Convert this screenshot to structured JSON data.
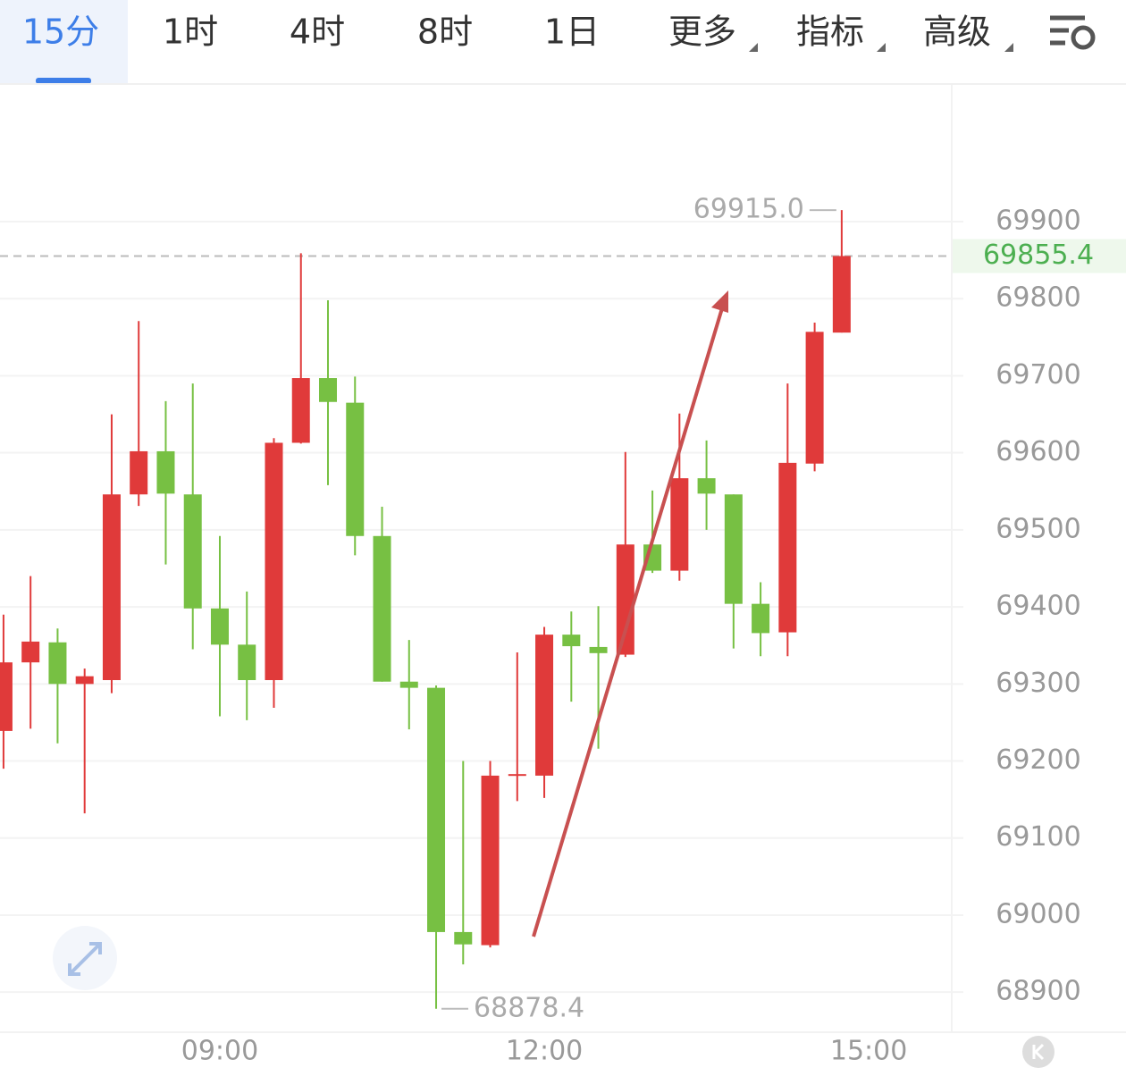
{
  "toolbar": {
    "tabs": [
      "15分",
      "1时",
      "4时",
      "8时",
      "1日",
      "更多",
      "指标",
      "高级"
    ]
  },
  "chart_data": {
    "type": "candlestick",
    "up_color": "#e03a3a",
    "down_color": "#77c043",
    "open": [
      69239,
      69328,
      69354,
      69300,
      69305,
      69546,
      69602,
      69546,
      69398,
      69351,
      69305,
      69613,
      69697,
      69665,
      69492,
      69303,
      69295,
      68978,
      68961,
      69181,
      69181,
      69364,
      69348,
      69338,
      69481,
      69447,
      69567,
      69546,
      69404,
      69367,
      69586,
      69756
    ],
    "high": [
      69390,
      69440,
      69372,
      69320,
      69650,
      69771,
      69667,
      69690,
      69492,
      69420,
      69619,
      69859,
      69798,
      69699,
      69530,
      69357,
      69298,
      69200,
      69200,
      69341,
      69374,
      69394,
      69401,
      69601,
      69551,
      69651,
      69616,
      69546,
      69432,
      69690,
      69769,
      {
        "value": 69915.0,
        "label": "69915.0"
      }
    ],
    "low": [
      69190,
      69242,
      69223,
      69132,
      69288,
      69531,
      69455,
      69345,
      69258,
      69253,
      69269,
      69612,
      69558,
      69467,
      69303,
      69241,
      {
        "value": 68878.4,
        "label": "68878.4"
      },
      68936,
      68958,
      69148,
      69152,
      69277,
      69216,
      69335,
      69444,
      69434,
      69500,
      69346,
      69336,
      69336,
      69576,
      69756
    ],
    "close": [
      69328,
      69355,
      69300,
      69310,
      69546,
      69602,
      69547,
      69398,
      69351,
      69305,
      69613,
      69697,
      69666,
      69492,
      69303,
      69295,
      68978,
      68962,
      69181,
      69183,
      69364,
      69349,
      69340,
      69481,
      69447,
      69567,
      69547,
      69404,
      69366,
      69587,
      69757,
      69855.4
    ],
    "last_price": 69855.4,
    "ylim": [
      68848,
      70077.5
    ],
    "yticks": [
      68900,
      69000,
      69100,
      69200,
      69300,
      69400,
      69500,
      69600,
      69700,
      69800,
      69900
    ],
    "xlim": [
      -0.13,
      35.07
    ],
    "xticks": [
      {
        "value": 8,
        "label": "09:00"
      },
      {
        "value": 20,
        "label": "12:00"
      },
      {
        "value": 32,
        "label": "15:00"
      }
    ],
    "grid": true
  }
}
